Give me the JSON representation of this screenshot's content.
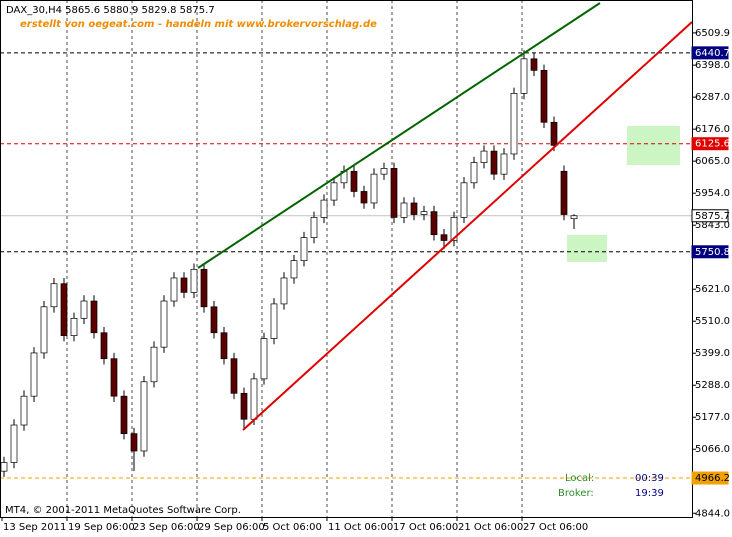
{
  "chart_data": {
    "type": "candlestick",
    "title": "DAX_30,H4  5865.6 5880.9 5829.8 5875.7",
    "subtitle": "erstellt von oegeat.com - handeln mit www.brokervorschlag.de",
    "categories": [
      "13 Sep 2011",
      "19 Sep 06:00",
      "23 Sep 06:00",
      "29 Sep 06:00",
      "5 Oct 06:00",
      "11 Oct 06:00",
      "17 Oct 06:00",
      "21 Oct 06:00",
      "27 Oct 06:00"
    ],
    "open": [
      4990,
      5020,
      5150,
      5250,
      5400,
      5560,
      5640,
      5460,
      5520,
      5580,
      5470,
      5380,
      5250,
      5120,
      5060,
      5300,
      5420,
      5580,
      5660,
      5610,
      5690,
      5560,
      5470,
      5380,
      5260,
      5170,
      5310,
      5450,
      5570,
      5660,
      5720,
      5800,
      5870,
      5930,
      5990,
      6030,
      5960,
      5920,
      6020,
      6040,
      5870,
      5920,
      5880,
      5890,
      5810,
      5790,
      5870,
      5990,
      6060,
      6100,
      6020,
      6090,
      6300,
      6420,
      6380,
      6200,
      6030,
      5865.6
    ],
    "high": [
      5040,
      5170,
      5270,
      5420,
      5580,
      5660,
      5660,
      5540,
      5600,
      5600,
      5490,
      5400,
      5270,
      5140,
      5320,
      5440,
      5600,
      5680,
      5680,
      5710,
      5710,
      5580,
      5490,
      5400,
      5280,
      5330,
      5470,
      5590,
      5680,
      5740,
      5820,
      5890,
      5950,
      6010,
      6050,
      6050,
      5980,
      6040,
      6060,
      6060,
      5940,
      5940,
      5910,
      5910,
      5830,
      5890,
      6010,
      6080,
      6120,
      6120,
      6110,
      6320,
      6450,
      6440,
      6400,
      6220,
      6050,
      5880.9
    ],
    "low": [
      4970,
      5000,
      5130,
      5230,
      5380,
      5540,
      5440,
      5440,
      5500,
      5450,
      5360,
      5230,
      5100,
      4990,
      5040,
      5280,
      5400,
      5560,
      5590,
      5590,
      5540,
      5450,
      5360,
      5240,
      5140,
      5150,
      5290,
      5430,
      5550,
      5640,
      5700,
      5780,
      5850,
      5910,
      5970,
      5940,
      5900,
      5900,
      6000,
      5850,
      5850,
      5860,
      5860,
      5790,
      5760,
      5770,
      5850,
      5970,
      6040,
      6000,
      6000,
      6070,
      6280,
      6360,
      6180,
      6100,
      5860,
      5829.8
    ],
    "close": [
      5020,
      5150,
      5250,
      5400,
      5560,
      5640,
      5460,
      5520,
      5580,
      5470,
      5380,
      5250,
      5120,
      5060,
      5300,
      5420,
      5580,
      5660,
      5610,
      5690,
      5560,
      5470,
      5380,
      5260,
      5170,
      5310,
      5450,
      5570,
      5660,
      5720,
      5800,
      5870,
      5930,
      5990,
      6030,
      5960,
      5920,
      6020,
      6040,
      5870,
      5920,
      5880,
      5890,
      5810,
      5790,
      5870,
      5990,
      6060,
      6100,
      6020,
      6090,
      6300,
      6420,
      6380,
      6200,
      6120,
      5880,
      5875.7
    ],
    "up_color": "#ffffff",
    "down_color": "#5a0000",
    "ylim": [
      4831,
      6624
    ],
    "yticks": [
      6509.9,
      {
        "value": 6398,
        "label": "6398.0"
      },
      {
        "value": 6287,
        "label": "6287.0"
      },
      {
        "value": 6176,
        "label": "6176.0"
      },
      {
        "value": 6065,
        "label": "6065.0"
      },
      {
        "value": 5954,
        "label": "5954.0"
      },
      {
        "value": 5843,
        "label": "5843.0"
      },
      {
        "value": 5621,
        "label": "5621.0"
      },
      {
        "value": 5510,
        "label": "5510.0"
      },
      {
        "value": 5399,
        "label": "5399.0"
      },
      {
        "value": 5288,
        "label": "5288.0"
      },
      {
        "value": 5177,
        "label": "5177.0"
      },
      {
        "value": 5066,
        "label": "5066.0"
      },
      {
        "value": 4844,
        "label": "4844.0"
      }
    ],
    "price_lines": [
      {
        "value": 6440.7,
        "color": "#000080"
      },
      {
        "value": 6125.6,
        "color": "#e00000"
      },
      {
        "value": 5875.7,
        "color": "#ffffff"
      },
      {
        "value": 5750.8,
        "color": "#000080"
      },
      {
        "value": 4966.2,
        "color": "#f0a000"
      }
    ],
    "footer": "MT4, © 2001-2011 MetaQuotes Software Corp.",
    "clock": [
      {
        "name": "Local:",
        "time": "00:39"
      },
      {
        "name": "Broker:",
        "time": "19:39"
      }
    ]
  }
}
